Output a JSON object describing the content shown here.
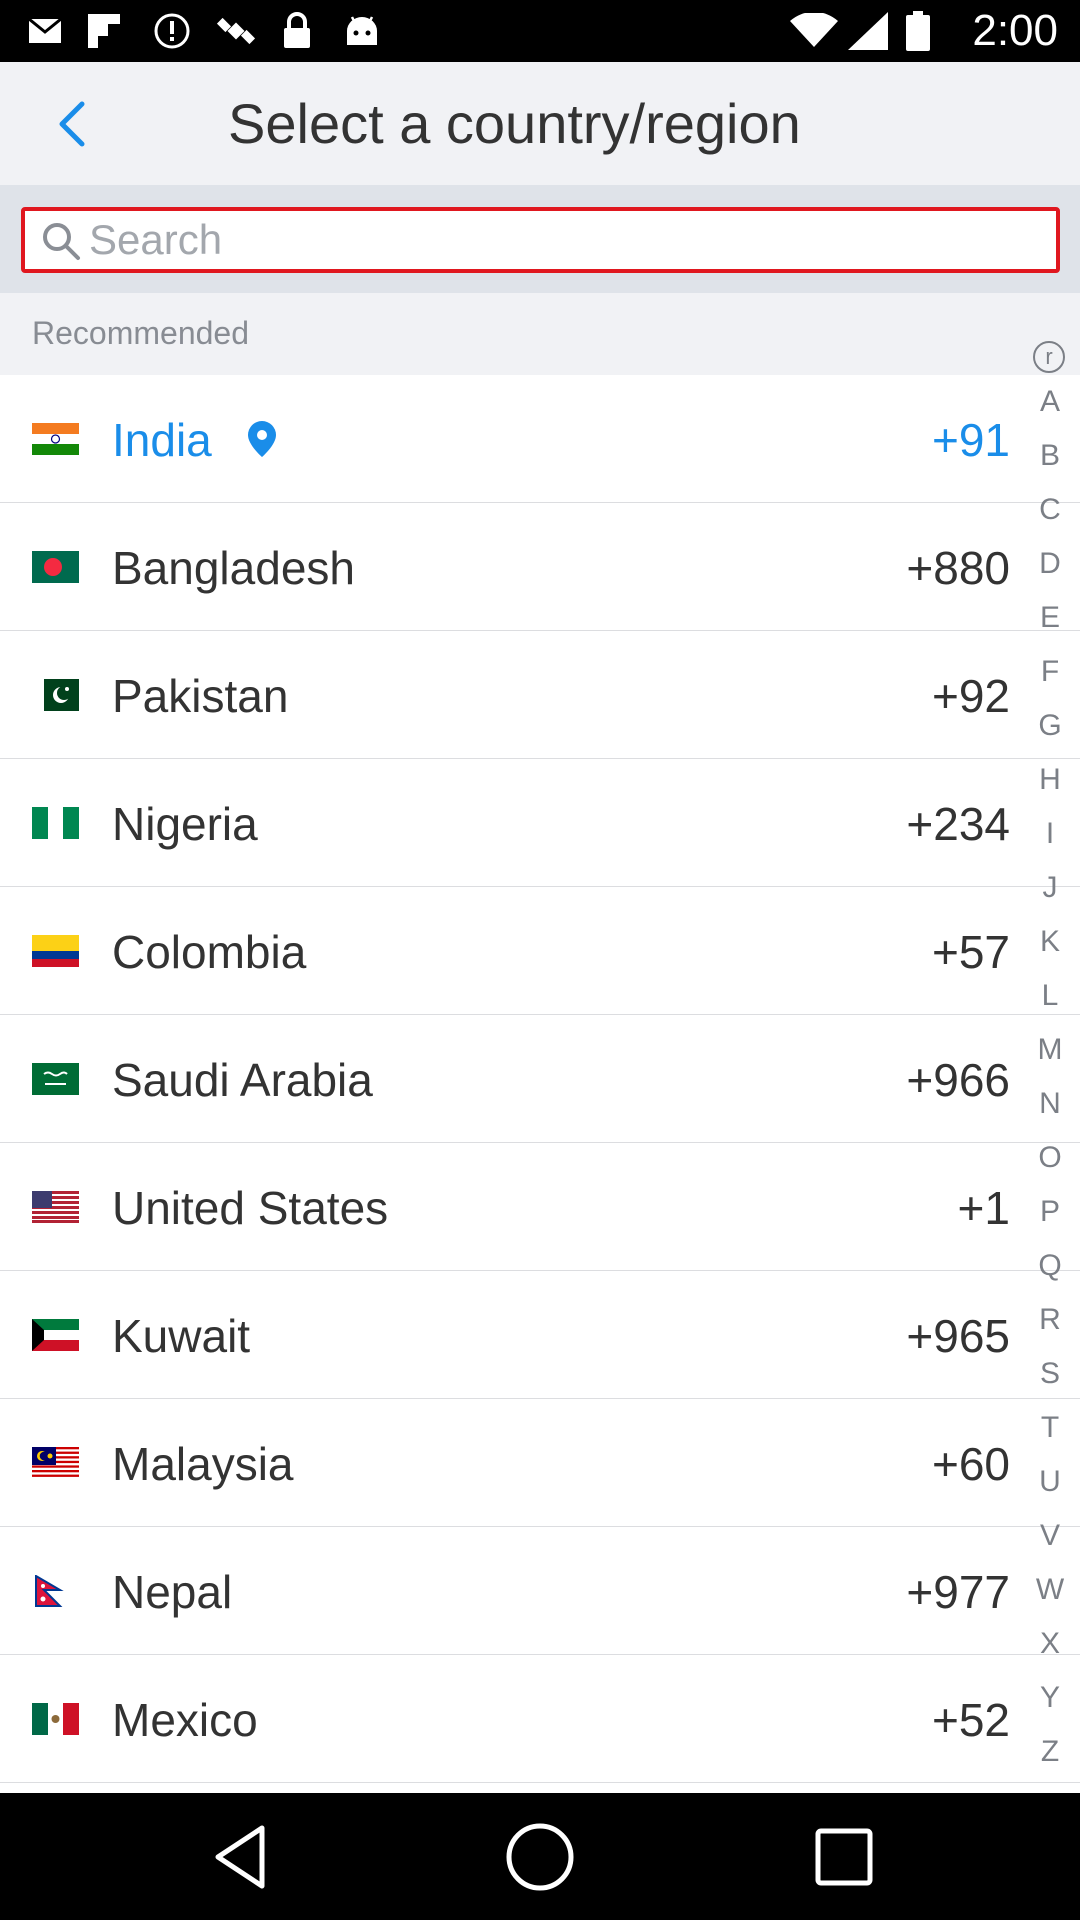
{
  "status_bar": {
    "time": "2:00",
    "icons": [
      "mail-icon",
      "flipboard-icon",
      "alert-icon",
      "satellite-icon",
      "lock-icon",
      "android-icon",
      "wifi-icon",
      "signal-icon",
      "battery-icon"
    ]
  },
  "header": {
    "back_icon": "chevron-left-icon",
    "title": "Select a country/region"
  },
  "search": {
    "placeholder": "Search",
    "value": ""
  },
  "section": {
    "title": "Recommended"
  },
  "countries": [
    {
      "name": "India",
      "code": "+91",
      "selected": true
    },
    {
      "name": "Bangladesh",
      "code": "+880"
    },
    {
      "name": "Pakistan",
      "code": "+92"
    },
    {
      "name": "Nigeria",
      "code": "+234"
    },
    {
      "name": "Colombia",
      "code": "+57"
    },
    {
      "name": "Saudi Arabia",
      "code": "+966"
    },
    {
      "name": "United States",
      "code": "+1"
    },
    {
      "name": "Kuwait",
      "code": "+965"
    },
    {
      "name": "Malaysia",
      "code": "+60"
    },
    {
      "name": "Nepal",
      "code": "+977"
    },
    {
      "name": "Mexico",
      "code": "+52"
    }
  ],
  "alphabet_index": [
    "r",
    "A",
    "B",
    "C",
    "D",
    "E",
    "F",
    "G",
    "H",
    "I",
    "J",
    "K",
    "L",
    "M",
    "N",
    "O",
    "P",
    "Q",
    "R",
    "S",
    "T",
    "U",
    "V",
    "W",
    "X",
    "Y",
    "Z"
  ],
  "colors": {
    "accent": "#1a8de9",
    "search_border": "#e0171f",
    "header_bg": "#f1f2f5",
    "text": "#333333"
  },
  "nav_bar": {
    "buttons": [
      "back-icon",
      "home-icon",
      "recents-icon"
    ]
  }
}
